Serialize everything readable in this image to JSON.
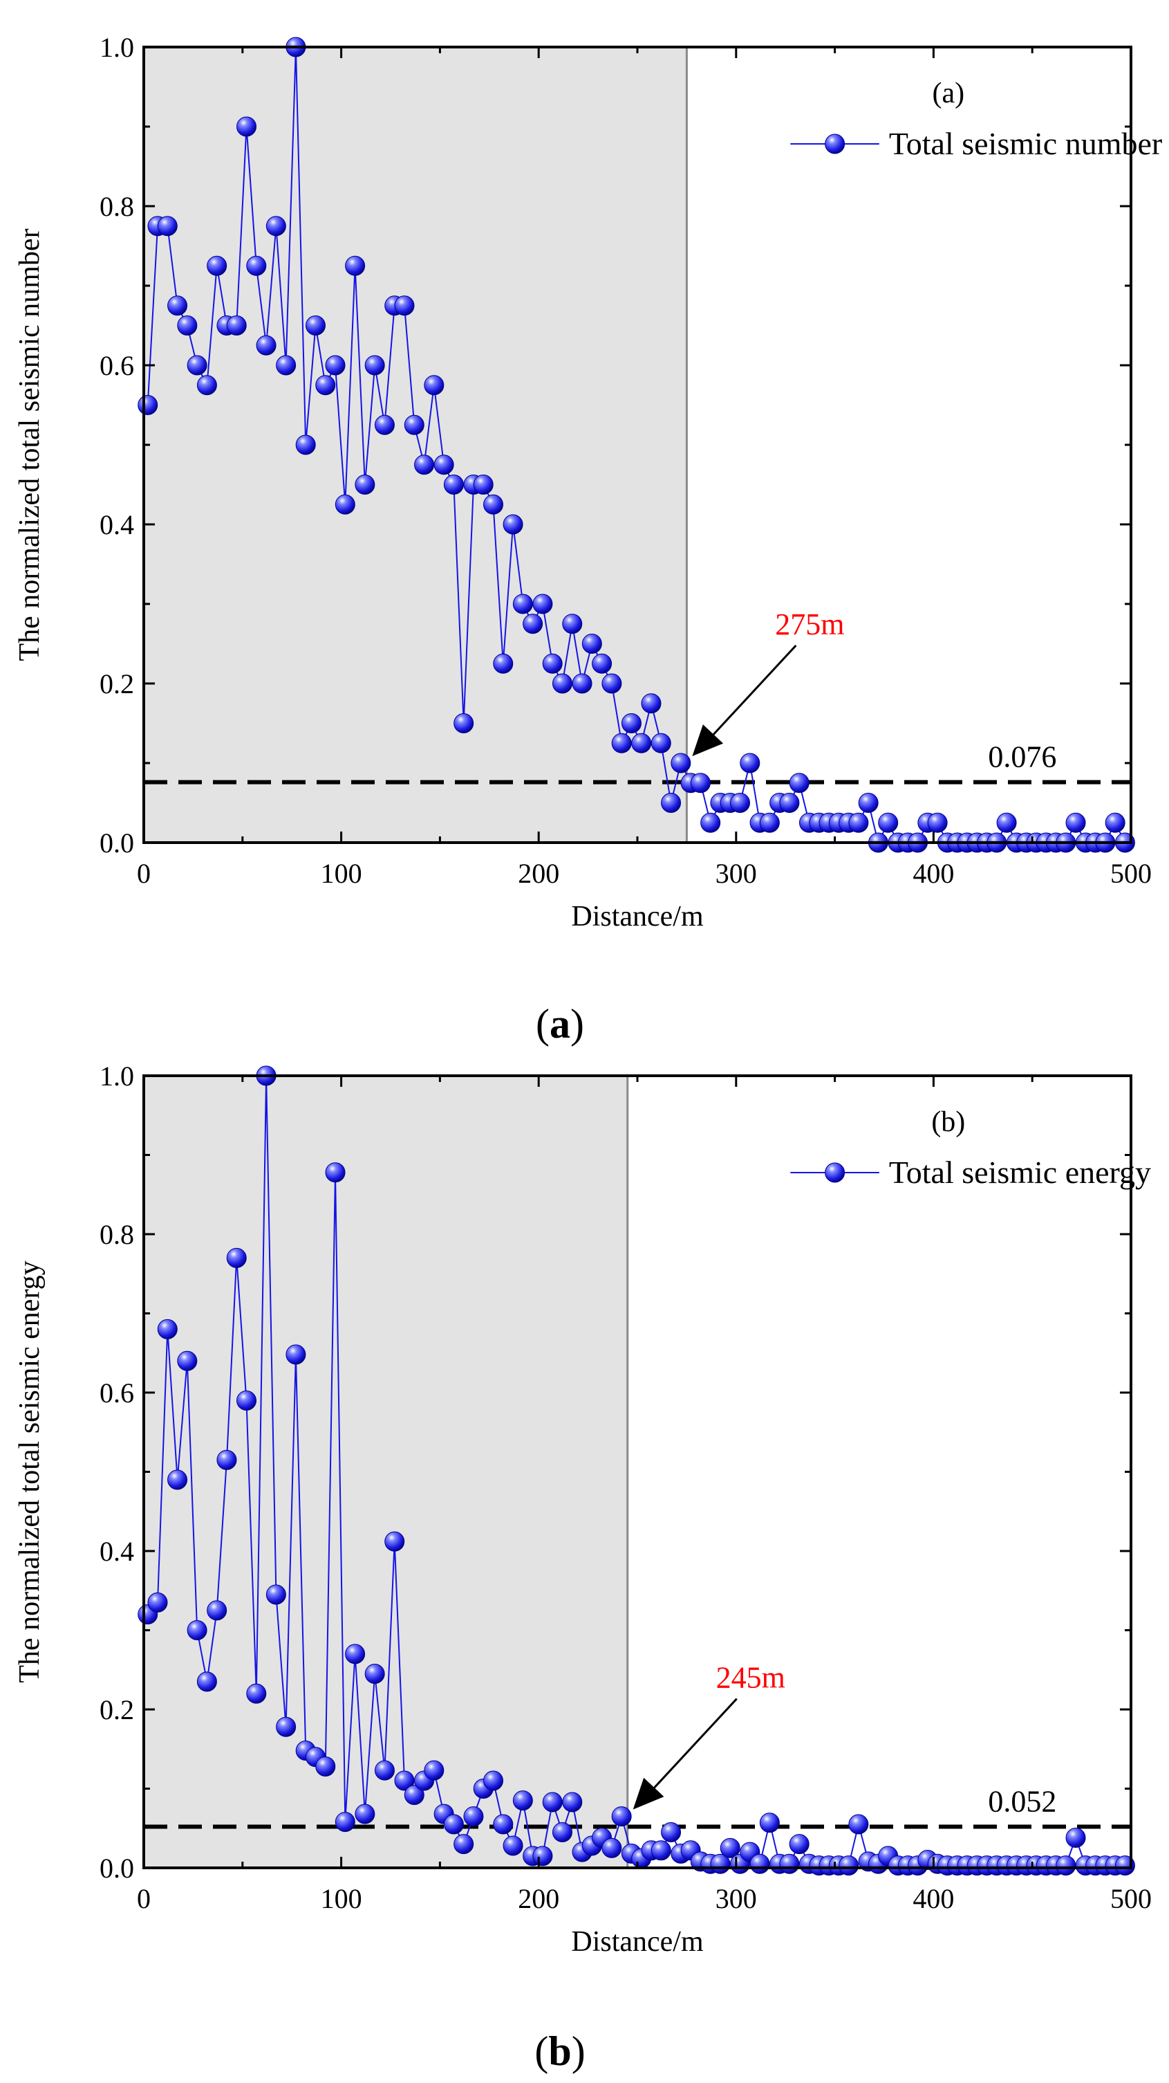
{
  "figure": {
    "captions": [
      {
        "open": "(",
        "letter": "a",
        "close": ")"
      },
      {
        "open": "(",
        "letter": "b",
        "close": ")"
      }
    ]
  },
  "chart_data": [
    {
      "type": "line",
      "panel_label": "(a)",
      "xlabel": "Distance/m",
      "ylabel": "The normalized total seismic number",
      "xlim": [
        0,
        500
      ],
      "ylim": [
        0,
        1.0
      ],
      "x_ticks": [
        "0",
        "100",
        "200",
        "300",
        "400",
        "500"
      ],
      "y_ticks": [
        "0.0",
        "0.2",
        "0.4",
        "0.6",
        "0.8",
        "1.0"
      ],
      "legend": "Total seismic number",
      "legend_position": "top-right",
      "shaded_region": [
        0,
        275
      ],
      "threshold": 0.076,
      "threshold_label": "0.076",
      "annotation": {
        "label": "275m",
        "x": 275,
        "y": 0.1
      },
      "colors": {
        "series": "#1414e6",
        "annotation": "#ff0000",
        "shade": "#e3e3e3"
      },
      "series": [
        {
          "name": "Total seismic number",
          "x": [
            2,
            7,
            12,
            17,
            22,
            27,
            32,
            37,
            42,
            47,
            52,
            57,
            62,
            67,
            72,
            77,
            82,
            87,
            92,
            97,
            102,
            107,
            112,
            117,
            122,
            127,
            132,
            137,
            142,
            147,
            152,
            157,
            162,
            167,
            172,
            177,
            182,
            187,
            192,
            197,
            202,
            207,
            212,
            217,
            222,
            227,
            232,
            237,
            242,
            247,
            252,
            257,
            262,
            267,
            272,
            277,
            282,
            287,
            292,
            297,
            302,
            307,
            312,
            317,
            322,
            327,
            332,
            337,
            342,
            347,
            352,
            357,
            362,
            367,
            372,
            377,
            382,
            387,
            392,
            397,
            402,
            407,
            412,
            417,
            422,
            427,
            432,
            437,
            442,
            447,
            452,
            457,
            462,
            467,
            472,
            477,
            482,
            487,
            492,
            497
          ],
          "values": [
            0.55,
            0.775,
            0.775,
            0.675,
            0.65,
            0.6,
            0.575,
            0.725,
            0.65,
            0.65,
            0.9,
            0.725,
            0.625,
            0.775,
            0.6,
            1.0,
            0.5,
            0.65,
            0.575,
            0.6,
            0.425,
            0.725,
            0.45,
            0.6,
            0.525,
            0.675,
            0.675,
            0.525,
            0.475,
            0.575,
            0.475,
            0.45,
            0.15,
            0.45,
            0.45,
            0.425,
            0.225,
            0.4,
            0.3,
            0.275,
            0.3,
            0.225,
            0.2,
            0.275,
            0.2,
            0.25,
            0.225,
            0.2,
            0.125,
            0.15,
            0.125,
            0.175,
            0.125,
            0.05,
            0.1,
            0.075,
            0.075,
            0.025,
            0.05,
            0.05,
            0.05,
            0.1,
            0.025,
            0.025,
            0.05,
            0.05,
            0.075,
            0.025,
            0.025,
            0.025,
            0.025,
            0.025,
            0.025,
            0.05,
            0.0,
            0.025,
            0.0,
            0.0,
            0.0,
            0.025,
            0.025,
            0.0,
            0.0,
            0.0,
            0.0,
            0.0,
            0.0,
            0.025,
            0.0,
            0.0,
            0.0,
            0.0,
            0.0,
            0.0,
            0.025,
            0.0,
            0.0,
            0.0,
            0.025,
            0.0
          ]
        }
      ]
    },
    {
      "type": "line",
      "panel_label": "(b)",
      "xlabel": "Distance/m",
      "ylabel": "The normalized total seismic energy",
      "xlim": [
        0,
        500
      ],
      "ylim": [
        0,
        1.0
      ],
      "x_ticks": [
        "0",
        "100",
        "200",
        "300",
        "400",
        "500"
      ],
      "y_ticks": [
        "0.0",
        "0.2",
        "0.4",
        "0.6",
        "0.8",
        "1.0"
      ],
      "legend": "Total seismic energy",
      "legend_position": "top-right",
      "shaded_region": [
        0,
        245
      ],
      "threshold": 0.052,
      "threshold_label": "0.052",
      "annotation": {
        "label": "245m",
        "x": 245,
        "y": 0.065
      },
      "colors": {
        "series": "#1414e6",
        "annotation": "#ff0000",
        "shade": "#e3e3e3"
      },
      "series": [
        {
          "name": "Total seismic energy",
          "x": [
            2,
            7,
            12,
            17,
            22,
            27,
            32,
            37,
            42,
            47,
            52,
            57,
            62,
            67,
            72,
            77,
            82,
            87,
            92,
            97,
            102,
            107,
            112,
            117,
            122,
            127,
            132,
            137,
            142,
            147,
            152,
            157,
            162,
            167,
            172,
            177,
            182,
            187,
            192,
            197,
            202,
            207,
            212,
            217,
            222,
            227,
            232,
            237,
            242,
            247,
            252,
            257,
            262,
            267,
            272,
            277,
            282,
            287,
            292,
            297,
            302,
            307,
            312,
            317,
            322,
            327,
            332,
            337,
            342,
            347,
            352,
            357,
            362,
            367,
            372,
            377,
            382,
            387,
            392,
            397,
            402,
            407,
            412,
            417,
            422,
            427,
            432,
            437,
            442,
            447,
            452,
            457,
            462,
            467,
            472,
            477,
            482,
            487,
            492,
            497
          ],
          "values": [
            0.32,
            0.335,
            0.68,
            0.49,
            0.64,
            0.3,
            0.235,
            0.325,
            0.515,
            0.77,
            0.59,
            0.22,
            1.0,
            0.345,
            0.178,
            0.648,
            0.148,
            0.14,
            0.128,
            0.878,
            0.058,
            0.27,
            0.068,
            0.245,
            0.123,
            0.412,
            0.11,
            0.092,
            0.11,
            0.123,
            0.068,
            0.055,
            0.03,
            0.065,
            0.1,
            0.11,
            0.055,
            0.028,
            0.085,
            0.015,
            0.015,
            0.083,
            0.045,
            0.083,
            0.02,
            0.028,
            0.038,
            0.025,
            0.065,
            0.018,
            0.012,
            0.022,
            0.022,
            0.045,
            0.018,
            0.022,
            0.008,
            0.005,
            0.005,
            0.025,
            0.005,
            0.02,
            0.005,
            0.057,
            0.005,
            0.005,
            0.03,
            0.005,
            0.003,
            0.003,
            0.003,
            0.003,
            0.055,
            0.008,
            0.005,
            0.015,
            0.003,
            0.003,
            0.003,
            0.01,
            0.005,
            0.003,
            0.003,
            0.003,
            0.003,
            0.003,
            0.003,
            0.003,
            0.003,
            0.003,
            0.003,
            0.003,
            0.003,
            0.003,
            0.038,
            0.003,
            0.003,
            0.003,
            0.003,
            0.003
          ]
        }
      ]
    }
  ]
}
